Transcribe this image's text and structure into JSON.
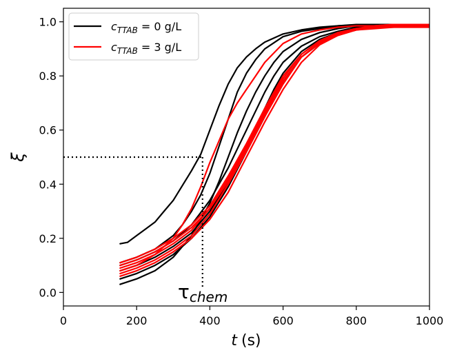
{
  "chart_data": {
    "type": "line",
    "xlabel_var": "t",
    "xlabel_unit": "(s)",
    "ylabel": "ξ",
    "xlim": [
      0,
      1000
    ],
    "ylim": [
      -0.05,
      1.05
    ],
    "x_ticks": [
      0,
      200,
      400,
      600,
      800,
      1000
    ],
    "y_ticks": [
      0.0,
      0.2,
      0.4,
      0.6,
      0.8,
      1.0
    ],
    "x_tick_labels": [
      "0",
      "200",
      "400",
      "600",
      "800",
      "1000"
    ],
    "y_tick_labels": [
      "0.0",
      "0.2",
      "0.4",
      "0.6",
      "0.8",
      "1.0"
    ],
    "legend_position": "top-left",
    "legend": [
      {
        "c": "c",
        "sub": "TTAB",
        "rest": " = 0 g/L",
        "color": "#000000"
      },
      {
        "c": "c",
        "sub": "TTAB",
        "rest": " = 3 g/L",
        "color": "#ff0000"
      }
    ],
    "annotation": {
      "symbol": "τ",
      "sub": "chem"
    },
    "guide": {
      "y": 0.5,
      "x": 380
    },
    "series": [
      {
        "group": "c_TTAB = 0 g/L",
        "color": "#000000",
        "x": [
          155,
          175,
          200,
          225,
          250,
          275,
          300,
          325,
          350,
          375,
          400,
          425,
          450,
          475,
          500,
          525,
          550,
          600,
          650,
          700,
          750,
          800,
          850,
          900,
          950,
          1000
        ],
        "y": [
          0.18,
          0.185,
          0.21,
          0.235,
          0.26,
          0.3,
          0.34,
          0.395,
          0.45,
          0.51,
          0.6,
          0.69,
          0.77,
          0.83,
          0.87,
          0.9,
          0.925,
          0.955,
          0.97,
          0.98,
          0.985,
          0.988,
          0.99,
          0.99,
          0.99,
          0.99
        ]
      },
      {
        "group": "c_TTAB = 0 g/L",
        "color": "#000000",
        "x": [
          155,
          200,
          250,
          300,
          325,
          350,
          375,
          400,
          425,
          450,
          475,
          500,
          525,
          550,
          600,
          650,
          700,
          750,
          800,
          850,
          900,
          950,
          1000
        ],
        "y": [
          0.11,
          0.13,
          0.16,
          0.21,
          0.25,
          0.3,
          0.36,
          0.44,
          0.54,
          0.64,
          0.74,
          0.81,
          0.86,
          0.9,
          0.945,
          0.965,
          0.975,
          0.985,
          0.99,
          0.99,
          0.99,
          0.99,
          0.99
        ]
      },
      {
        "group": "c_TTAB = 0 g/L",
        "color": "#000000",
        "x": [
          155,
          200,
          250,
          300,
          350,
          400,
          425,
          450,
          475,
          500,
          525,
          550,
          575,
          600,
          650,
          700,
          750,
          800,
          850,
          900,
          950,
          1000
        ],
        "y": [
          0.03,
          0.05,
          0.08,
          0.13,
          0.21,
          0.33,
          0.41,
          0.5,
          0.59,
          0.67,
          0.74,
          0.8,
          0.85,
          0.89,
          0.935,
          0.96,
          0.975,
          0.985,
          0.99,
          0.99,
          0.99,
          0.99
        ]
      },
      {
        "group": "c_TTAB = 0 g/L",
        "color": "#000000",
        "x": [
          155,
          200,
          250,
          300,
          350,
          400,
          450,
          475,
          500,
          525,
          550,
          575,
          600,
          650,
          700,
          750,
          800,
          850,
          900,
          950,
          1000
        ],
        "y": [
          0.1,
          0.12,
          0.15,
          0.19,
          0.25,
          0.34,
          0.46,
          0.53,
          0.6,
          0.67,
          0.74,
          0.8,
          0.85,
          0.91,
          0.945,
          0.965,
          0.98,
          0.985,
          0.99,
          0.99,
          0.99
        ]
      },
      {
        "group": "c_TTAB = 0 g/L",
        "color": "#000000",
        "x": [
          155,
          200,
          250,
          300,
          350,
          400,
          450,
          500,
          525,
          550,
          575,
          600,
          650,
          700,
          750,
          800,
          850,
          900,
          950,
          1000
        ],
        "y": [
          0.08,
          0.1,
          0.13,
          0.17,
          0.22,
          0.3,
          0.41,
          0.54,
          0.61,
          0.68,
          0.75,
          0.81,
          0.89,
          0.935,
          0.96,
          0.975,
          0.985,
          0.99,
          0.99,
          0.99
        ]
      },
      {
        "group": "c_TTAB = 0 g/L",
        "color": "#000000",
        "x": [
          155,
          200,
          250,
          300,
          350,
          400,
          450,
          500,
          550,
          575,
          600,
          650,
          700,
          750,
          800,
          850,
          900,
          950,
          1000
        ],
        "y": [
          0.05,
          0.07,
          0.1,
          0.14,
          0.2,
          0.28,
          0.39,
          0.52,
          0.65,
          0.72,
          0.78,
          0.87,
          0.92,
          0.955,
          0.97,
          0.98,
          0.985,
          0.99,
          0.99
        ]
      },
      {
        "group": "c_TTAB = 3 g/L",
        "color": "#ff0000",
        "x": [
          155,
          200,
          250,
          300,
          325,
          350,
          375,
          400,
          425,
          450,
          475,
          500,
          525,
          550,
          600,
          650,
          700,
          750,
          800,
          850,
          900,
          950,
          1000
        ],
        "y": [
          0.08,
          0.1,
          0.14,
          0.2,
          0.25,
          0.31,
          0.39,
          0.48,
          0.56,
          0.64,
          0.7,
          0.75,
          0.8,
          0.85,
          0.92,
          0.955,
          0.97,
          0.98,
          0.985,
          0.985,
          0.99,
          0.99,
          0.99
        ]
      },
      {
        "group": "c_TTAB = 3 g/L",
        "color": "#ff0000",
        "x": [
          155,
          200,
          250,
          300,
          350,
          400,
          450,
          500,
          550,
          600,
          650,
          700,
          750,
          800,
          850,
          900,
          950,
          1000
        ],
        "y": [
          0.09,
          0.11,
          0.14,
          0.18,
          0.23,
          0.31,
          0.42,
          0.54,
          0.67,
          0.79,
          0.88,
          0.93,
          0.96,
          0.975,
          0.985,
          0.99,
          0.99,
          0.99
        ]
      },
      {
        "group": "c_TTAB = 3 g/L",
        "color": "#ff0000",
        "x": [
          155,
          200,
          250,
          300,
          350,
          400,
          450,
          500,
          550,
          600,
          650,
          700,
          750,
          800,
          850,
          900,
          950,
          1000
        ],
        "y": [
          0.07,
          0.09,
          0.12,
          0.16,
          0.21,
          0.29,
          0.4,
          0.52,
          0.65,
          0.77,
          0.87,
          0.925,
          0.955,
          0.97,
          0.98,
          0.985,
          0.985,
          0.985
        ]
      },
      {
        "group": "c_TTAB = 3 g/L",
        "color": "#ff0000",
        "x": [
          155,
          200,
          250,
          300,
          350,
          400,
          450,
          500,
          550,
          600,
          650,
          700,
          750,
          800,
          850,
          900,
          950,
          1000
        ],
        "y": [
          0.1,
          0.12,
          0.15,
          0.19,
          0.24,
          0.31,
          0.41,
          0.53,
          0.66,
          0.78,
          0.87,
          0.92,
          0.95,
          0.97,
          0.98,
          0.98,
          0.985,
          0.985
        ]
      },
      {
        "group": "c_TTAB = 3 g/L",
        "color": "#ff0000",
        "x": [
          155,
          200,
          250,
          300,
          350,
          400,
          450,
          500,
          550,
          600,
          650,
          700,
          750,
          800,
          850,
          900,
          950,
          1000
        ],
        "y": [
          0.06,
          0.08,
          0.11,
          0.15,
          0.2,
          0.27,
          0.37,
          0.5,
          0.63,
          0.75,
          0.85,
          0.915,
          0.95,
          0.97,
          0.975,
          0.98,
          0.98,
          0.98
        ]
      },
      {
        "group": "c_TTAB = 3 g/L",
        "color": "#ff0000",
        "x": [
          155,
          200,
          250,
          300,
          350,
          400,
          450,
          500,
          550,
          600,
          650,
          700,
          750,
          800,
          850,
          900,
          950,
          1000
        ],
        "y": [
          0.11,
          0.13,
          0.16,
          0.2,
          0.25,
          0.32,
          0.43,
          0.55,
          0.68,
          0.8,
          0.88,
          0.93,
          0.96,
          0.975,
          0.98,
          0.985,
          0.985,
          0.985
        ]
      }
    ]
  }
}
